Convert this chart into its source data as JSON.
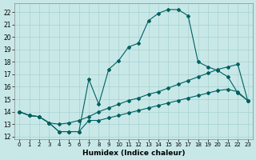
{
  "xlabel": "Humidex (Indice chaleur)",
  "xlim": [
    -0.5,
    23.5
  ],
  "ylim": [
    11.8,
    22.7
  ],
  "xticks": [
    0,
    1,
    2,
    3,
    4,
    5,
    6,
    7,
    8,
    9,
    10,
    11,
    12,
    13,
    14,
    15,
    16,
    17,
    18,
    19,
    20,
    21,
    22,
    23
  ],
  "yticks": [
    12,
    13,
    14,
    15,
    16,
    17,
    18,
    19,
    20,
    21,
    22
  ],
  "background_color": "#c8e8e8",
  "grid_color": "#a8d0d0",
  "line_color": "#006060",
  "curve_high_x": [
    0,
    1,
    2,
    3,
    4,
    5,
    6,
    7,
    8,
    9,
    10,
    11,
    12,
    13,
    14,
    15,
    16,
    17,
    18,
    19,
    20,
    21,
    22,
    23
  ],
  "curve_high_y": [
    14.0,
    13.7,
    13.6,
    13.1,
    12.4,
    12.4,
    12.4,
    16.6,
    14.6,
    17.4,
    18.1,
    19.2,
    19.5,
    21.3,
    21.9,
    22.2,
    22.2,
    21.7,
    18.0,
    17.6,
    17.3,
    16.8,
    15.5,
    14.9
  ],
  "curve_mid_x": [
    0,
    1,
    2,
    3,
    4,
    5,
    6,
    7,
    8,
    9,
    10,
    11,
    12,
    13,
    14,
    15,
    16,
    17,
    18,
    19,
    20,
    21,
    22,
    23
  ],
  "curve_mid_y": [
    14.0,
    13.7,
    13.6,
    13.1,
    13.0,
    13.1,
    13.3,
    13.6,
    14.0,
    14.3,
    14.6,
    14.9,
    15.1,
    15.4,
    15.6,
    15.9,
    16.2,
    16.5,
    16.8,
    17.1,
    17.4,
    17.6,
    17.8,
    14.9
  ],
  "curve_low_x": [
    0,
    1,
    2,
    3,
    4,
    5,
    6,
    7,
    8,
    9,
    10,
    11,
    12,
    13,
    14,
    15,
    16,
    17,
    18,
    19,
    20,
    21,
    22,
    23
  ],
  "curve_low_y": [
    14.0,
    13.7,
    13.6,
    13.1,
    12.4,
    12.4,
    12.4,
    13.3,
    13.3,
    13.5,
    13.7,
    13.9,
    14.1,
    14.3,
    14.5,
    14.7,
    14.9,
    15.1,
    15.3,
    15.5,
    15.7,
    15.8,
    15.6,
    14.9
  ]
}
